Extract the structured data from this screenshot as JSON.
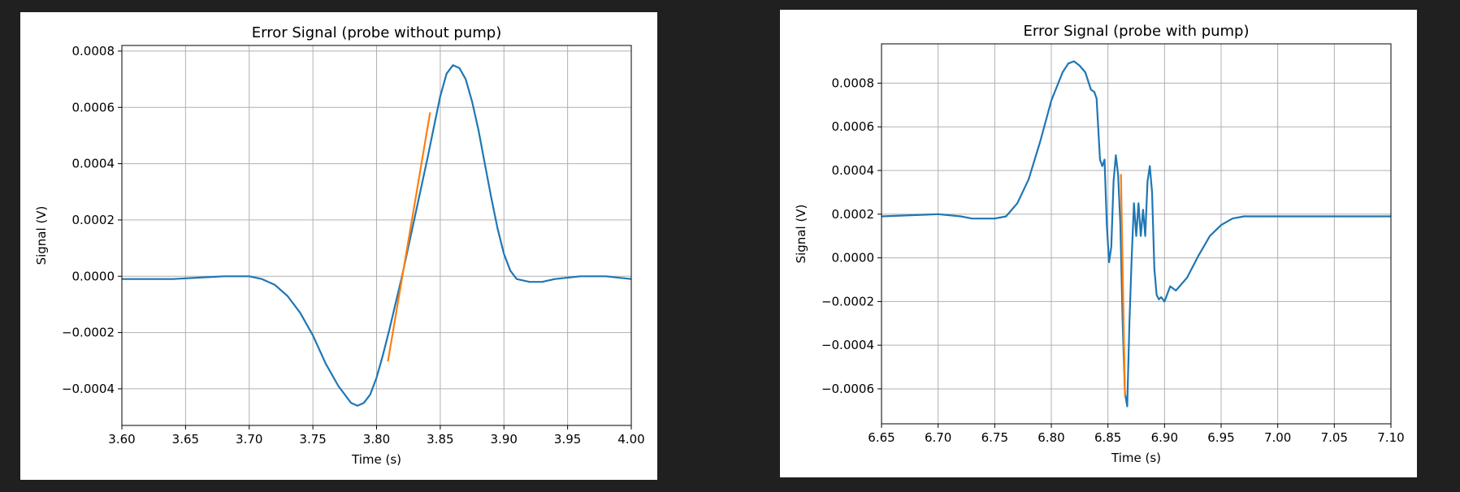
{
  "colors": {
    "background": "#202020",
    "panel": "#ffffff",
    "signal": "#1f77b4",
    "fit": "#ff7f0e",
    "grid": "#b0b0b0"
  },
  "chart_data": [
    {
      "type": "line",
      "title": "Error Signal (probe without pump)",
      "xlabel": "Time (s)",
      "ylabel": "Signal (V)",
      "xlim": [
        3.6,
        4.0
      ],
      "ylim": [
        -0.00053,
        0.00082
      ],
      "xticks": [
        3.6,
        3.65,
        3.7,
        3.75,
        3.8,
        3.85,
        3.9,
        3.95,
        4.0
      ],
      "xtick_labels": [
        "3.60",
        "3.65",
        "3.70",
        "3.75",
        "3.80",
        "3.85",
        "3.90",
        "3.95",
        "4.00"
      ],
      "yticks": [
        -0.0004,
        -0.0002,
        0.0,
        0.0002,
        0.0004,
        0.0006,
        0.0008
      ],
      "ytick_labels": [
        "−0.0004",
        "−0.0002",
        "0.0000",
        "0.0002",
        "0.0004",
        "0.0006",
        "0.0008"
      ],
      "grid": true,
      "series": [
        {
          "color": "#1f77b4",
          "x": [
            3.6,
            3.62,
            3.64,
            3.66,
            3.68,
            3.7,
            3.71,
            3.72,
            3.73,
            3.74,
            3.75,
            3.76,
            3.77,
            3.78,
            3.785,
            3.79,
            3.795,
            3.8,
            3.805,
            3.81,
            3.82,
            3.83,
            3.84,
            3.845,
            3.85,
            3.855,
            3.86,
            3.865,
            3.87,
            3.875,
            3.88,
            3.885,
            3.89,
            3.895,
            3.9,
            3.905,
            3.91,
            3.92,
            3.93,
            3.94,
            3.96,
            3.98,
            4.0
          ],
          "y": [
            -1e-05,
            -1e-05,
            -1e-05,
            -5e-06,
            0.0,
            0.0,
            -1e-05,
            -3e-05,
            -7e-05,
            -0.00013,
            -0.00021,
            -0.00031,
            -0.00039,
            -0.00045,
            -0.00046,
            -0.00045,
            -0.00042,
            -0.00036,
            -0.00028,
            -0.00019,
            0.0,
            0.00021,
            0.00042,
            0.00053,
            0.00064,
            0.00072,
            0.00075,
            0.00074,
            0.0007,
            0.00062,
            0.00052,
            0.0004,
            0.00028,
            0.00017,
            8e-05,
            2e-05,
            -1e-05,
            -2e-05,
            -2e-05,
            -1e-05,
            0.0,
            0.0,
            -1e-05
          ]
        },
        {
          "color": "#ff7f0e",
          "x": [
            3.809,
            3.842
          ],
          "y": [
            -0.0003,
            0.00058
          ]
        }
      ]
    },
    {
      "type": "line",
      "title": "Error Signal (probe with pump)",
      "xlabel": "Time (s)",
      "ylabel": "Signal (V)",
      "xlim": [
        6.65,
        7.1
      ],
      "ylim": [
        -0.00076,
        0.00098
      ],
      "xticks": [
        6.65,
        6.7,
        6.75,
        6.8,
        6.85,
        6.9,
        6.95,
        7.0,
        7.05,
        7.1
      ],
      "xtick_labels": [
        "6.65",
        "6.70",
        "6.75",
        "6.80",
        "6.85",
        "6.90",
        "6.95",
        "7.00",
        "7.05",
        "7.10"
      ],
      "yticks": [
        -0.0006,
        -0.0004,
        -0.0002,
        0.0,
        0.0002,
        0.0004,
        0.0006,
        0.0008
      ],
      "ytick_labels": [
        "−0.0006",
        "−0.0004",
        "−0.0002",
        "0.0000",
        "0.0002",
        "0.0004",
        "0.0006",
        "0.0008"
      ],
      "grid": true,
      "series": [
        {
          "color": "#1f77b4",
          "x": [
            6.65,
            6.7,
            6.72,
            6.73,
            6.75,
            6.76,
            6.77,
            6.78,
            6.79,
            6.8,
            6.81,
            6.815,
            6.82,
            6.825,
            6.83,
            6.835,
            6.838,
            6.84,
            6.843,
            6.845,
            6.847,
            6.849,
            6.851,
            6.853,
            6.855,
            6.857,
            6.859,
            6.861,
            6.863,
            6.865,
            6.867,
            6.869,
            6.871,
            6.873,
            6.875,
            6.877,
            6.879,
            6.881,
            6.883,
            6.885,
            6.887,
            6.889,
            6.891,
            6.893,
            6.895,
            6.897,
            6.9,
            6.905,
            6.91,
            6.92,
            6.93,
            6.94,
            6.95,
            6.96,
            6.97,
            6.98,
            7.0,
            7.02,
            7.05,
            7.08,
            7.1
          ],
          "y": [
            0.00019,
            0.0002,
            0.00019,
            0.00018,
            0.00018,
            0.00019,
            0.00025,
            0.00036,
            0.00053,
            0.00072,
            0.00085,
            0.00089,
            0.0009,
            0.00088,
            0.00085,
            0.00077,
            0.00076,
            0.00073,
            0.00045,
            0.00042,
            0.00045,
            0.00015,
            -2e-05,
            5e-05,
            0.00035,
            0.00047,
            0.00038,
            0.00015,
            -0.0003,
            -0.00062,
            -0.00068,
            -0.0003,
            0.0,
            0.00025,
            0.0001,
            0.00025,
            0.0001,
            0.00022,
            0.0001,
            0.00035,
            0.00042,
            0.0003,
            -5e-05,
            -0.00017,
            -0.00019,
            -0.00018,
            -0.0002,
            -0.00013,
            -0.00015,
            -9e-05,
            1e-05,
            0.0001,
            0.00015,
            0.00018,
            0.00019,
            0.00019,
            0.00019,
            0.00019,
            0.00019,
            0.00019,
            0.00019
          ]
        },
        {
          "color": "#ff7f0e",
          "x": [
            6.8615,
            6.865
          ],
          "y": [
            0.00038,
            -0.00063
          ]
        }
      ]
    }
  ]
}
